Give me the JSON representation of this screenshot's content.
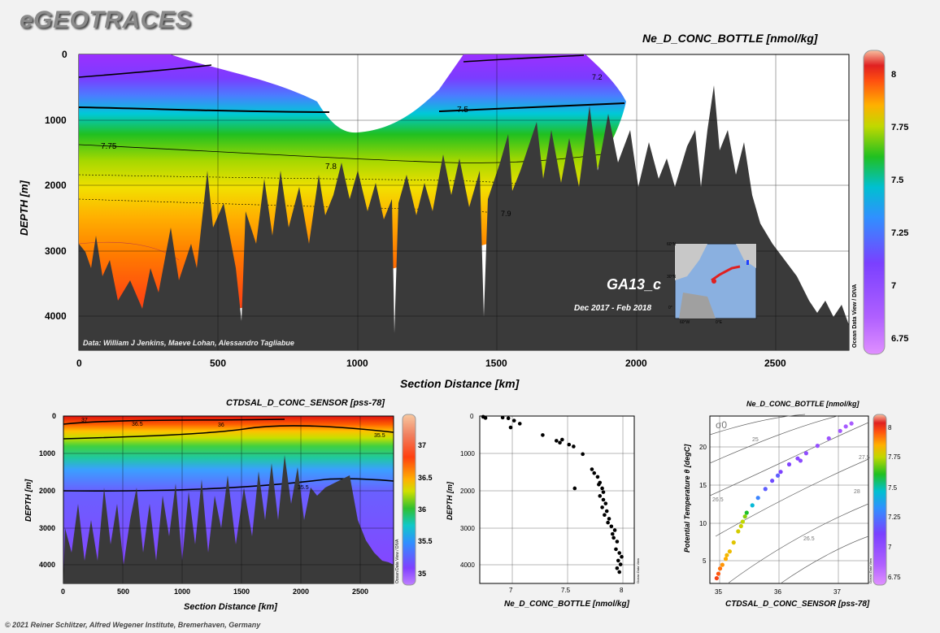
{
  "header": {
    "logo": "eGEOTRACES"
  },
  "main_panel": {
    "title": "Ne_D_CONC_BOTTLE [nmol/kg]",
    "xlabel": "Section Distance [km]",
    "ylabel": "DEPTH [m]",
    "x_ticks": [
      "0",
      "500",
      "1000",
      "1500",
      "2000",
      "2500"
    ],
    "y_ticks": [
      "0",
      "1000",
      "2000",
      "3000",
      "4000"
    ],
    "contour_labels": [
      "7.2",
      "7.5",
      "7.75",
      "7.8",
      "7.9"
    ],
    "colorbar_ticks": [
      "8",
      "7.75",
      "7.5",
      "7.25",
      "7",
      "6.75"
    ],
    "side_label": "Ocean Data View / DIVA",
    "data_credit": "Data: William J Jenkins, Maeve Lohan, Alessandro Tagliabue",
    "inset_cruise": "GA13_c",
    "inset_dates": "Dec 2017 - Feb 2018",
    "inset_ticks": [
      "60°N",
      "30°N",
      "0°",
      "60°W",
      "0°E"
    ]
  },
  "salinity_panel": {
    "title": "CTDSAL_D_CONC_SENSOR [pss-78]",
    "xlabel": "Section Distance [km]",
    "ylabel": "DEPTH [m]",
    "x_ticks": [
      "0",
      "500",
      "1000",
      "1500",
      "2000",
      "2500"
    ],
    "y_ticks": [
      "0",
      "1000",
      "2000",
      "3000",
      "4000"
    ],
    "contour_labels": [
      "37",
      "36.5",
      "36",
      "35.5",
      "35.5"
    ],
    "colorbar_ticks": [
      "37",
      "36.5",
      "36",
      "35.5",
      "35"
    ],
    "side_label": "Ocean Data View / DIVA"
  },
  "profile_panel": {
    "xlabel": "Ne_D_CONC_BOTTLE [nmol/kg]",
    "ylabel": "DEPTH [m]",
    "x_ticks": [
      "7",
      "7.5",
      "8"
    ],
    "y_ticks": [
      "0",
      "1000",
      "2000",
      "3000",
      "4000"
    ],
    "side_label": "Ocean Data View"
  },
  "ts_panel": {
    "title": "Ne_D_CONC_BOTTLE [nmol/kg]",
    "xlabel": "CTDSAL_D_CONC_SENSOR [pss-78]",
    "ylabel": "Potential Temperature θ [degC]",
    "x_ticks": [
      "35",
      "36",
      "37"
    ],
    "y_ticks": [
      "5",
      "10",
      "15",
      "20"
    ],
    "sigma_label": "σ0",
    "isopycnal_labels": [
      "25",
      "26.5",
      "27.5",
      "26.5",
      "28"
    ],
    "colorbar_ticks": [
      "8",
      "7.75",
      "7.5",
      "7.25",
      "7",
      "6.75"
    ],
    "side_label": "Ocean Data View"
  },
  "footer": {
    "copyright": "© 2021 Reiner Schlitzer, Alfred Wegener Institute, Bremerhaven, Germany"
  },
  "colors": {
    "bathymetry": "#3a3a3a",
    "panel_bg": "#ffffff",
    "page_bg": "#f2f2f2"
  },
  "chart_data": [
    {
      "type": "heatmap",
      "title": "Ne_D_CONC_BOTTLE [nmol/kg]",
      "xlabel": "Section Distance [km]",
      "ylabel": "DEPTH [m]",
      "xlim": [
        0,
        2780
      ],
      "ylim": [
        4500,
        0
      ],
      "colorbar_range": [
        6.7,
        8.1
      ],
      "grid": true,
      "contour_levels": [
        7.2,
        7.5,
        7.75,
        7.8,
        7.9
      ],
      "depth_profile": [
        {
          "depth": 0,
          "value": 7.15
        },
        {
          "depth": 500,
          "value": 7.35
        },
        {
          "depth": 1000,
          "value": 7.62
        },
        {
          "depth": 1500,
          "value": 7.76
        },
        {
          "depth": 2000,
          "value": 7.82
        },
        {
          "depth": 2500,
          "value": 7.88
        },
        {
          "depth": 3000,
          "value": 7.93
        },
        {
          "depth": 4000,
          "value": 8.0
        }
      ]
    },
    {
      "type": "heatmap",
      "title": "CTDSAL_D_CONC_SENSOR [pss-78]",
      "xlabel": "Section Distance [km]",
      "ylabel": "DEPTH [m]",
      "xlim": [
        0,
        2780
      ],
      "ylim": [
        4500,
        0
      ],
      "colorbar_range": [
        34.9,
        37.3
      ],
      "grid": true,
      "contour_levels": [
        35.5,
        36,
        36.5,
        37
      ],
      "depth_profile": [
        {
          "depth": 0,
          "value": 37.0
        },
        {
          "depth": 200,
          "value": 36.6
        },
        {
          "depth": 500,
          "value": 35.8
        },
        {
          "depth": 800,
          "value": 35.3
        },
        {
          "depth": 1500,
          "value": 35.1
        },
        {
          "depth": 2500,
          "value": 34.98
        },
        {
          "depth": 4000,
          "value": 34.92
        }
      ]
    },
    {
      "type": "scatter",
      "xlabel": "Ne_D_CONC_BOTTLE [nmol/kg]",
      "ylabel": "DEPTH [m]",
      "xlim": [
        6.75,
        8.1
      ],
      "ylim": [
        4400,
        0
      ],
      "grid": true,
      "points": [
        [
          6.78,
          20
        ],
        [
          6.8,
          50
        ],
        [
          6.95,
          40
        ],
        [
          7.0,
          60
        ],
        [
          7.05,
          120
        ],
        [
          7.02,
          300
        ],
        [
          7.1,
          200
        ],
        [
          7.3,
          500
        ],
        [
          7.42,
          650
        ],
        [
          7.45,
          700
        ],
        [
          7.47,
          620
        ],
        [
          7.53,
          750
        ],
        [
          7.57,
          800
        ],
        [
          7.65,
          1000
        ],
        [
          7.73,
          1400
        ],
        [
          7.75,
          1500
        ],
        [
          7.58,
          1900
        ],
        [
          7.78,
          1600
        ],
        [
          7.8,
          1750
        ],
        [
          7.82,
          1900
        ],
        [
          7.8,
          2100
        ],
        [
          7.83,
          2200
        ],
        [
          7.85,
          2300
        ],
        [
          7.82,
          2400
        ],
        [
          7.86,
          2500
        ],
        [
          7.84,
          2600
        ],
        [
          7.88,
          2700
        ],
        [
          7.9,
          2900
        ],
        [
          7.93,
          3000
        ],
        [
          7.92,
          3200
        ],
        [
          7.95,
          3300
        ],
        [
          7.94,
          3500
        ],
        [
          7.97,
          3600
        ],
        [
          7.96,
          3800
        ],
        [
          7.98,
          3900
        ],
        [
          7.95,
          4000
        ],
        [
          7.97,
          4100
        ],
        [
          7.99,
          3700
        ],
        [
          7.87,
          2800
        ],
        [
          7.83,
          2000
        ],
        [
          7.79,
          1800
        ],
        [
          7.91,
          3100
        ]
      ]
    },
    {
      "type": "scatter",
      "title": "Ne_D_CONC_BOTTLE [nmol/kg]",
      "xlabel": "CTDSAL_D_CONC_SENSOR [pss-78]",
      "ylabel": "Potential Temperature θ [degC]",
      "xlim": [
        34.8,
        37.6
      ],
      "ylim": [
        1.5,
        24
      ],
      "grid": true,
      "colorbar_range": [
        6.7,
        8.1
      ],
      "points": [
        [
          34.92,
          2.2,
          8.0
        ],
        [
          34.95,
          2.8,
          7.95
        ],
        [
          34.98,
          3.5,
          7.92
        ],
        [
          35.02,
          4.0,
          7.88
        ],
        [
          35.08,
          4.8,
          7.85
        ],
        [
          35.15,
          5.8,
          7.82
        ],
        [
          35.22,
          7.0,
          7.8
        ],
        [
          35.3,
          8.5,
          7.78
        ],
        [
          35.38,
          9.8,
          7.75
        ],
        [
          35.45,
          11.0,
          7.6
        ],
        [
          35.55,
          12.0,
          7.45
        ],
        [
          35.65,
          13.0,
          7.3
        ],
        [
          35.78,
          14.2,
          7.2
        ],
        [
          35.9,
          15.3,
          7.15
        ],
        [
          36.05,
          16.5,
          7.1
        ],
        [
          36.2,
          17.5,
          7.05
        ],
        [
          36.35,
          18.3,
          7.0
        ],
        [
          36.5,
          19.0,
          6.95
        ],
        [
          36.7,
          20.0,
          6.9
        ],
        [
          36.9,
          21.0,
          6.85
        ],
        [
          37.1,
          22.0,
          6.8
        ],
        [
          37.3,
          23.0,
          6.76
        ],
        [
          35.42,
          10.5,
          7.7
        ],
        [
          35.35,
          9.2,
          7.77
        ],
        [
          35.1,
          5.3,
          7.83
        ],
        [
          36.0,
          16.0,
          7.2
        ],
        [
          36.4,
          18.0,
          6.98
        ],
        [
          37.2,
          22.6,
          6.78
        ]
      ]
    }
  ]
}
